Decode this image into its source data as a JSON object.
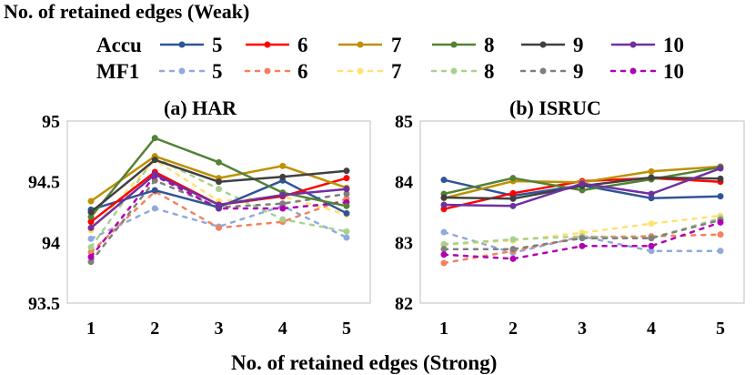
{
  "figure": {
    "top_title": "No. of retained edges (Weak)",
    "bottom_xlabel": "No. of retained edges (Strong)"
  },
  "legend": {
    "accu_label": "Accu",
    "mf1_label": "MF1",
    "entries": [
      "5",
      "6",
      "7",
      "8",
      "9",
      "10"
    ]
  },
  "colors": {
    "accu": [
      "#2f5597",
      "#ff0000",
      "#bf9000",
      "#548235",
      "#404040",
      "#7030a0"
    ],
    "mf1": [
      "#8faadc",
      "#f4825c",
      "#ffe26e",
      "#a9d18e",
      "#7f7f7f",
      "#b000b0"
    ]
  },
  "chart_data": [
    {
      "type": "line",
      "title": "(a) HAR",
      "x": [
        1,
        2,
        3,
        4,
        5
      ],
      "ylim": [
        93.5,
        95
      ],
      "yticks": [
        "93.5",
        "94",
        "94.5",
        "95"
      ],
      "xticks": [
        "1",
        "2",
        "3",
        "4",
        "5"
      ],
      "series": [
        {
          "name": "Accu 5",
          "metric": "Accu",
          "values": [
            94.27,
            94.43,
            94.29,
            94.51,
            94.24
          ]
        },
        {
          "name": "Accu 6",
          "metric": "Accu",
          "values": [
            94.17,
            94.58,
            94.31,
            94.38,
            94.53
          ]
        },
        {
          "name": "Accu 7",
          "metric": "Accu",
          "values": [
            94.34,
            94.71,
            94.53,
            94.63,
            94.45
          ]
        },
        {
          "name": "Accu 8",
          "metric": "Accu",
          "values": [
            94.21,
            94.86,
            94.66,
            94.41,
            94.3
          ]
        },
        {
          "name": "Accu 9",
          "metric": "Accu",
          "values": [
            94.25,
            94.68,
            94.5,
            94.54,
            94.59
          ]
        },
        {
          "name": "Accu 10",
          "metric": "Accu",
          "values": [
            94.12,
            94.56,
            94.31,
            94.39,
            94.44
          ]
        },
        {
          "name": "MF1 5",
          "metric": "MF1",
          "values": [
            94.03,
            94.28,
            94.13,
            94.3,
            94.04
          ]
        },
        {
          "name": "MF1 6",
          "metric": "MF1",
          "values": [
            93.92,
            94.42,
            94.12,
            94.17,
            94.36
          ]
        },
        {
          "name": "MF1 7",
          "metric": "MF1",
          "values": [
            94.1,
            94.68,
            94.34,
            94.38,
            94.23
          ]
        },
        {
          "name": "MF1 8",
          "metric": "MF1",
          "values": [
            93.96,
            94.7,
            94.44,
            94.19,
            94.09
          ]
        },
        {
          "name": "MF1 9",
          "metric": "MF1",
          "values": [
            93.84,
            94.51,
            94.29,
            94.32,
            94.4
          ]
        },
        {
          "name": "MF1 10",
          "metric": "MF1",
          "values": [
            93.88,
            94.55,
            94.28,
            94.28,
            94.33
          ]
        }
      ]
    },
    {
      "type": "line",
      "title": "(b) ISRUC",
      "x": [
        1,
        2,
        3,
        4,
        5
      ],
      "ylim": [
        82,
        85
      ],
      "yticks": [
        "82",
        "83",
        "84",
        "85"
      ],
      "xticks": [
        "1",
        "2",
        "3",
        "4",
        "5"
      ],
      "series": [
        {
          "name": "Accu 5",
          "metric": "Accu",
          "values": [
            84.03,
            83.77,
            83.94,
            83.73,
            83.76
          ]
        },
        {
          "name": "Accu 6",
          "metric": "Accu",
          "values": [
            83.55,
            83.81,
            84.01,
            84.06,
            84.0
          ]
        },
        {
          "name": "Accu 7",
          "metric": "Accu",
          "values": [
            83.73,
            84.01,
            83.99,
            84.17,
            84.25
          ]
        },
        {
          "name": "Accu 8",
          "metric": "Accu",
          "values": [
            83.8,
            84.06,
            83.86,
            84.04,
            84.24
          ]
        },
        {
          "name": "Accu 9",
          "metric": "Accu",
          "values": [
            83.74,
            83.72,
            83.93,
            84.07,
            84.05
          ]
        },
        {
          "name": "Accu 10",
          "metric": "Accu",
          "values": [
            83.62,
            83.6,
            83.97,
            83.8,
            84.22
          ]
        },
        {
          "name": "MF1 5",
          "metric": "MF1",
          "values": [
            83.17,
            82.83,
            83.1,
            82.86,
            82.86
          ]
        },
        {
          "name": "MF1 6",
          "metric": "MF1",
          "values": [
            82.66,
            82.86,
            83.09,
            83.1,
            83.13
          ]
        },
        {
          "name": "MF1 7",
          "metric": "MF1",
          "values": [
            82.96,
            83.03,
            83.16,
            83.31,
            83.44
          ]
        },
        {
          "name": "MF1 8",
          "metric": "MF1",
          "values": [
            82.97,
            83.05,
            83.1,
            83.07,
            83.4
          ]
        },
        {
          "name": "MF1 9",
          "metric": "MF1",
          "values": [
            82.89,
            82.89,
            83.07,
            83.07,
            83.37
          ]
        },
        {
          "name": "MF1 10",
          "metric": "MF1",
          "values": [
            82.8,
            82.73,
            82.94,
            82.94,
            83.33
          ]
        }
      ]
    }
  ]
}
